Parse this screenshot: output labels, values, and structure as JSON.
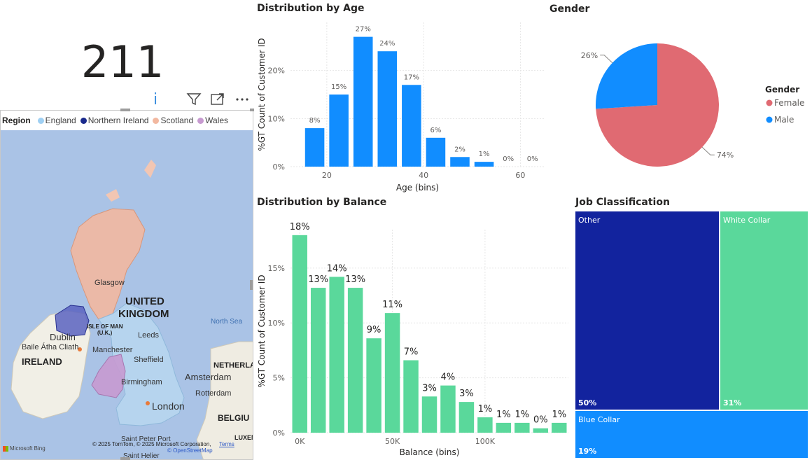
{
  "kpi": {
    "value": "211",
    "info_icon": "i"
  },
  "visual_header": {
    "icons": [
      "filter-icon",
      "focus-mode-icon",
      "more-options-icon"
    ]
  },
  "map": {
    "legend_title": "Region",
    "legend": [
      {
        "name": "England",
        "color": "#9fd0f3"
      },
      {
        "name": "Northern Ireland",
        "color": "#1a2a8c"
      },
      {
        "name": "Scotland",
        "color": "#f2b8a0"
      },
      {
        "name": "Wales",
        "color": "#c79ad0"
      }
    ],
    "labels": {
      "uk_line1": "UNITED",
      "uk_line2": "KINGDOM",
      "ireland": "IRELAND",
      "glasgow": "Glasgow",
      "isle_of_man_1": "ISLE OF MAN",
      "isle_of_man_2": "(U.K.)",
      "dublin": "Dublin",
      "baile": "Baile Átha Cliath",
      "manchester": "Manchester",
      "leeds": "Leeds",
      "sheffield": "Sheffield",
      "birmingham": "Birmingham",
      "london": "London",
      "amsterdam": "Amsterdam",
      "rotterdam": "Rotterdam",
      "netherlands": "NETHERLA",
      "belgium": "BELGIU",
      "luxembourg": "LUXEM",
      "north_sea": "North Sea",
      "saint_peter_port": "Saint Peter Port",
      "saint_helier": "Saint Helier",
      "bing": "Microsoft Bing",
      "copyright": "© 2025 TomTom, © 2025 Microsoft Corporation,",
      "terms": "Terms",
      "osm": "© OpenStreetMap"
    }
  },
  "chart_data": [
    {
      "id": "age",
      "type": "bar",
      "title": "Distribution by Age",
      "xlabel": "Age (bins)",
      "ylabel": "%GT Count of Customer ID",
      "x": [
        17.5,
        22.5,
        27.5,
        32.5,
        37.5,
        42.5,
        47.5,
        52.5,
        57.5,
        62.5
      ],
      "values": [
        8,
        15,
        27,
        24,
        17,
        6,
        2,
        1,
        0,
        0
      ],
      "data_labels": [
        "8%",
        "15%",
        "27%",
        "24%",
        "17%",
        "6%",
        "2%",
        "1%",
        "0%",
        "0%"
      ],
      "xticks": [
        20,
        40,
        60
      ],
      "xlim": [
        12.5,
        65
      ],
      "yticks": [
        "0%",
        "10%",
        "20%"
      ],
      "ylim": [
        0,
        30
      ],
      "color": "#118dff",
      "grid": true
    },
    {
      "id": "gender",
      "type": "pie",
      "title": "Gender",
      "legend_title": "Gender",
      "legend_position": "right",
      "slices": [
        {
          "name": "Female",
          "value": 74,
          "label": "74%",
          "color": "#e06a72"
        },
        {
          "name": "Male",
          "value": 26,
          "label": "26%",
          "color": "#118dff"
        }
      ]
    },
    {
      "id": "balance",
      "type": "bar",
      "title": "Distribution by Balance",
      "xlabel": "Balance (bins)",
      "ylabel": "%GT Count of Customer ID",
      "x": [
        0,
        10,
        20,
        30,
        40,
        50,
        60,
        70,
        80,
        90,
        100,
        110,
        120,
        130,
        140
      ],
      "values": [
        18,
        13,
        14,
        13,
        9,
        11,
        7,
        3,
        4,
        3,
        1,
        1,
        1,
        0,
        1
      ],
      "plot_values": [
        18,
        13.2,
        14.2,
        13.2,
        8.6,
        10.9,
        6.6,
        3.3,
        4.3,
        2.8,
        1.4,
        0.9,
        0.9,
        0.4,
        0.9
      ],
      "data_labels": [
        "18%",
        "13%",
        "14%",
        "13%",
        "9%",
        "11%",
        "7%",
        "3%",
        "4%",
        "3%",
        "1%",
        "1%",
        "1%",
        "0%",
        "1%"
      ],
      "xticks": [
        "0K",
        "50K",
        "100K"
      ],
      "xtick_values": [
        0,
        50,
        100
      ],
      "xlim": [
        -5,
        145
      ],
      "yticks": [
        "0%",
        "5%",
        "10%",
        "15%"
      ],
      "ylim": [
        0,
        18.5
      ],
      "color": "#5ad89b",
      "grid": true
    },
    {
      "id": "job",
      "type": "treemap",
      "title": "Job Classification",
      "tiles": [
        {
          "name": "Other",
          "value": 50,
          "label": "50%",
          "color": "#12239e"
        },
        {
          "name": "White Collar",
          "value": 31,
          "label": "31%",
          "color": "#5ad89b"
        },
        {
          "name": "Blue Collar",
          "value": 19,
          "label": "19%",
          "color": "#118dff"
        }
      ]
    }
  ]
}
